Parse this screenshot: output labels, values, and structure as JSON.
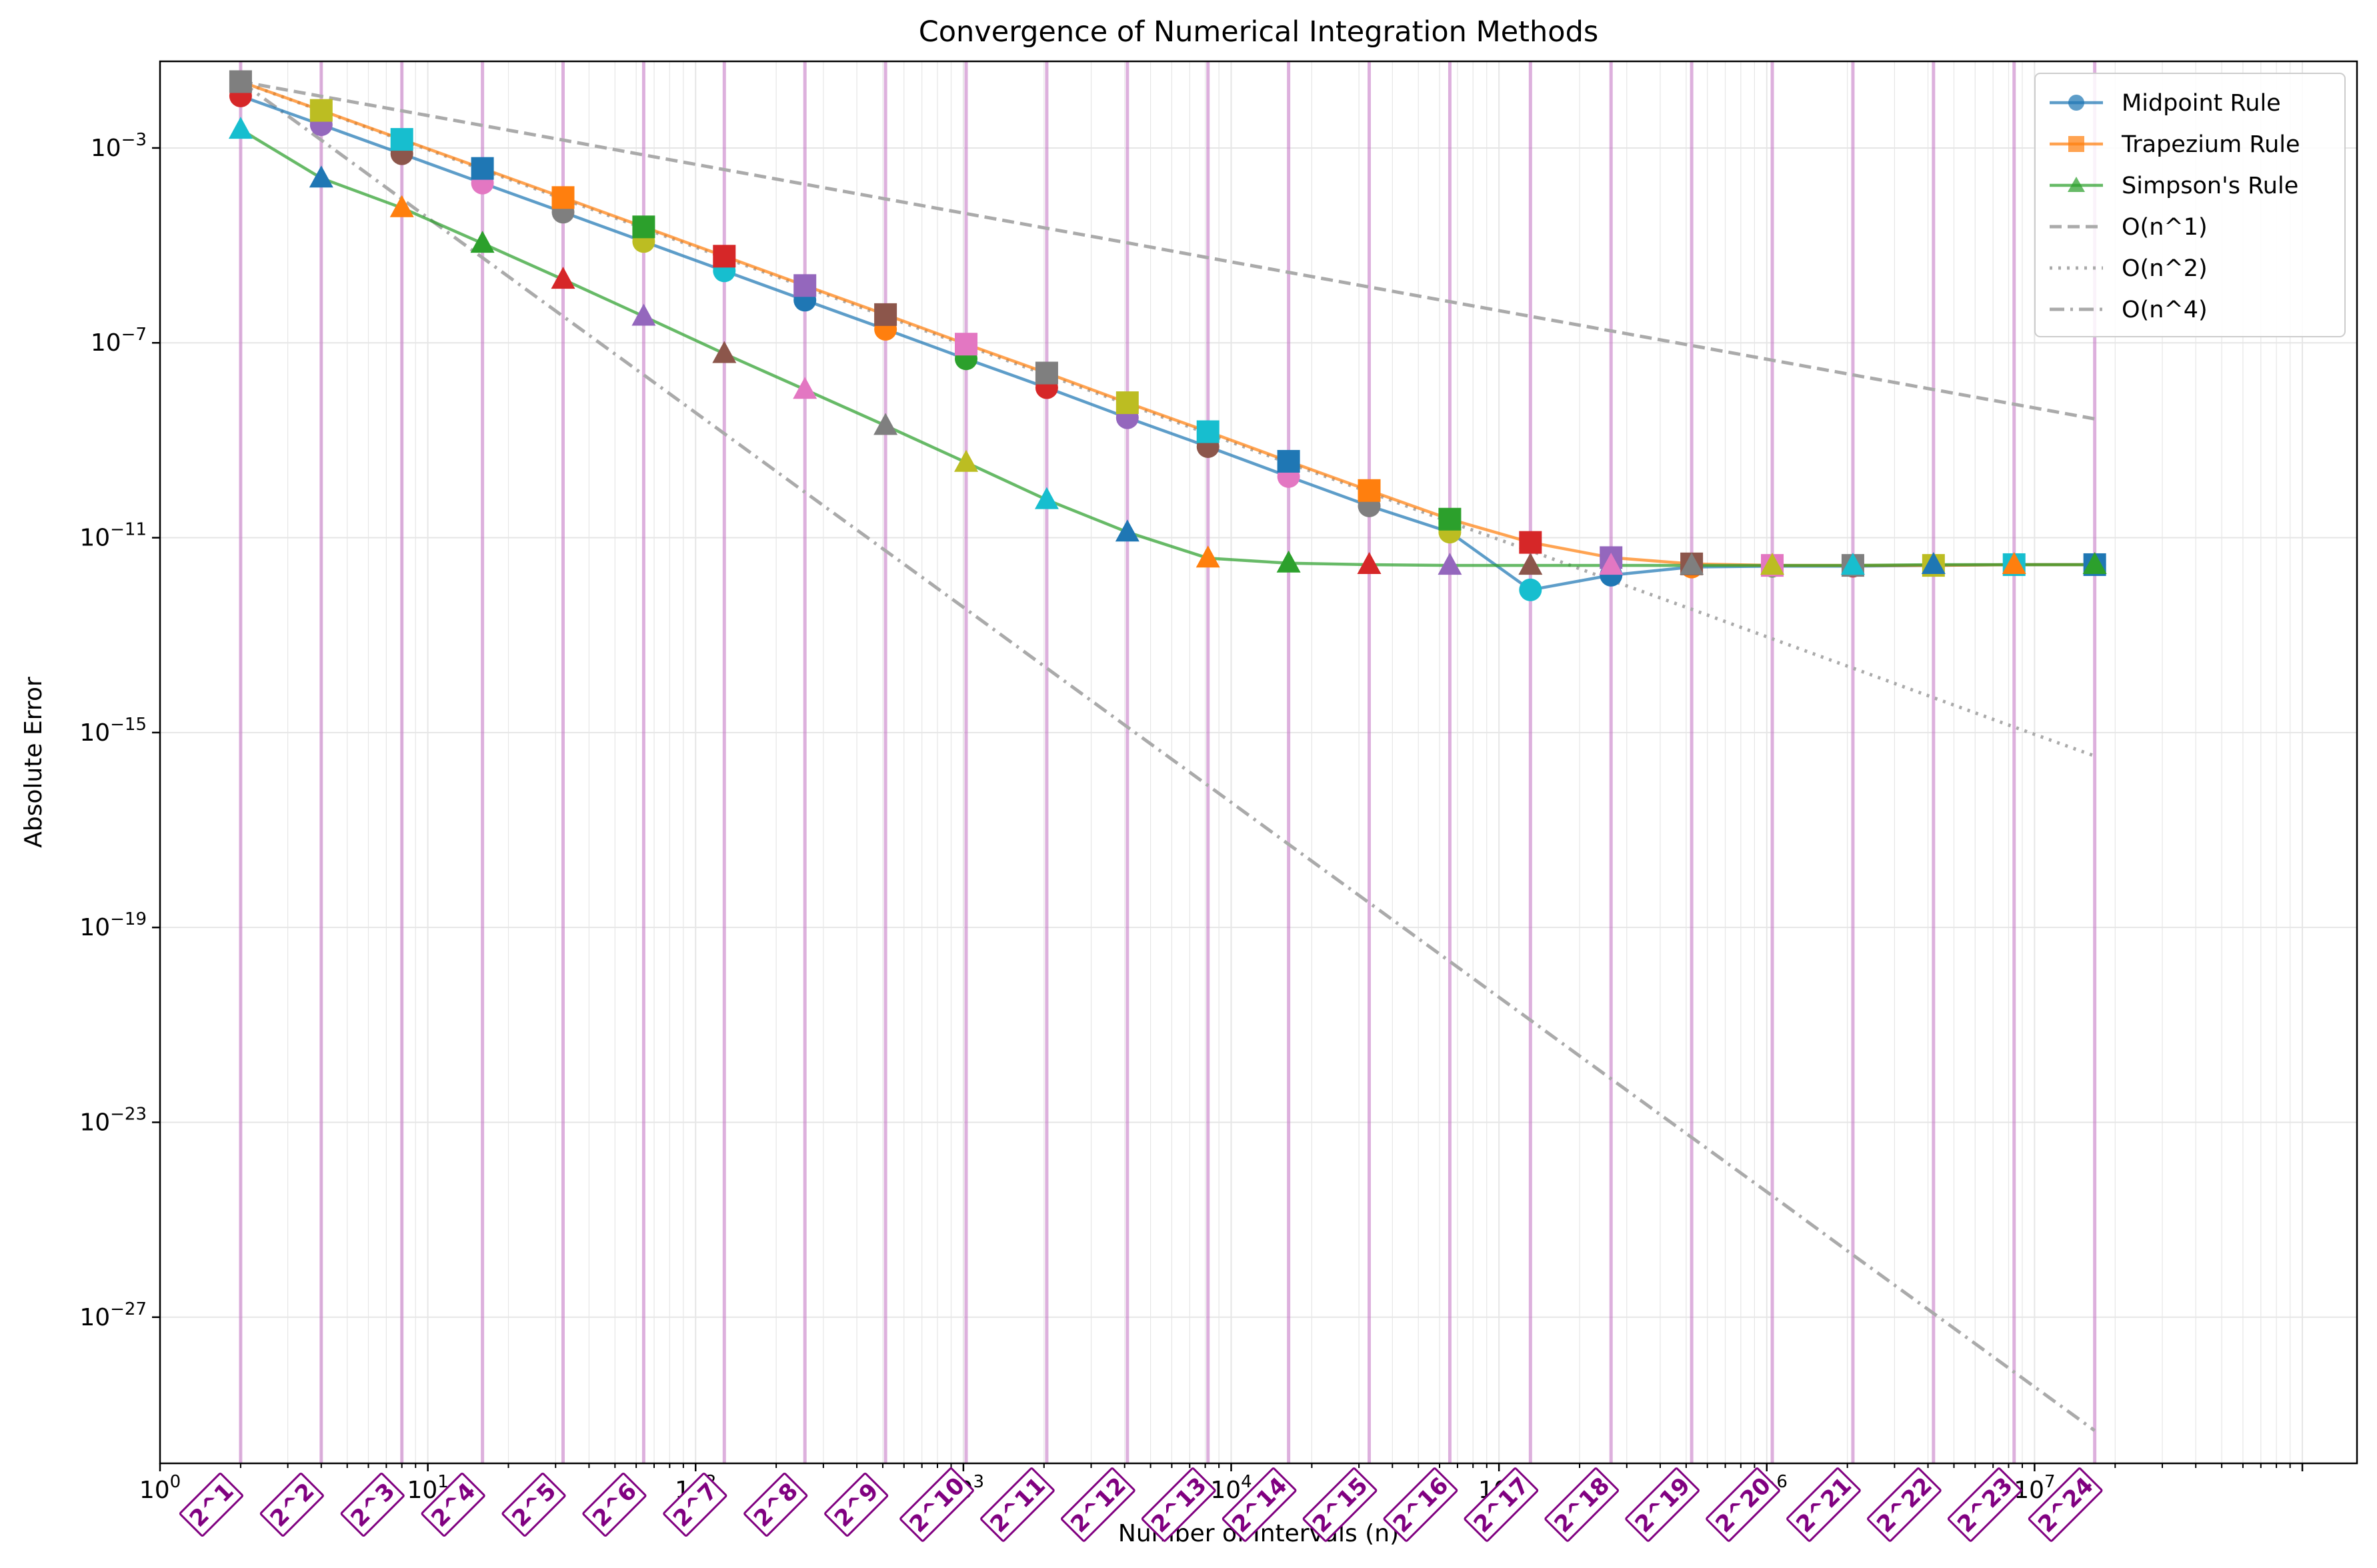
{
  "chart_data": {
    "type": "line",
    "title": "Convergence of Numerical Integration Methods",
    "xlabel": "Number of Intervals (n)",
    "ylabel": "Absolute Error",
    "xscale": "log",
    "yscale": "log",
    "xlim": [
      1,
      160000000
    ],
    "ylim": [
      1e-30,
      0.06
    ],
    "grid": true,
    "legend_position": "top-right",
    "x_tick_labels": [
      "10^0",
      "10^1",
      "10^2",
      "10^3",
      "10^4",
      "10^5",
      "10^6",
      "10^7"
    ],
    "y_tick_labels": [
      "10^-3",
      "10^-7",
      "10^-11",
      "10^-15",
      "10^-19",
      "10^-23",
      "10^-27"
    ],
    "x": [
      2,
      4,
      8,
      16,
      32,
      64,
      128,
      256,
      512,
      1024,
      2048,
      4096,
      8192,
      16384,
      32768,
      65536,
      131072,
      262144,
      524288,
      1048576,
      2097152,
      4194304,
      8388608,
      16777216
    ],
    "power_labels": [
      "2^1",
      "2^2",
      "2^3",
      "2^4",
      "2^5",
      "2^6",
      "2^7",
      "2^8",
      "2^9",
      "2^10",
      "2^11",
      "2^12",
      "2^13",
      "2^14",
      "2^15",
      "2^16",
      "2^17",
      "2^18",
      "2^19",
      "2^20",
      "2^21",
      "2^22",
      "2^23",
      "2^24"
    ],
    "series": [
      {
        "name": "Midpoint Rule",
        "color": "#1f77b4",
        "marker": "circle",
        "style": "solid",
        "values": [
          0.0117,
          0.003,
          0.00076,
          0.00019,
          4.8e-05,
          1.2e-05,
          3e-06,
          7.5e-07,
          1.9e-07,
          4.7e-08,
          1.2e-08,
          2.9e-09,
          7.4e-10,
          1.8e-10,
          4.5e-11,
          1.3e-11,
          8.5e-13,
          1.7e-12,
          2.5e-12,
          2.6e-12,
          2.6e-12,
          2.7e-12,
          2.8e-12,
          2.8e-12
        ]
      },
      {
        "name": "Trapezium Rule",
        "color": "#ff7f0e",
        "marker": "square",
        "style": "solid",
        "values": [
          0.023,
          0.0059,
          0.0015,
          0.00038,
          9.6e-05,
          2.4e-05,
          6e-06,
          1.5e-06,
          3.8e-07,
          9.4e-08,
          2.4e-08,
          5.9e-09,
          1.5e-09,
          3.7e-10,
          9.3e-11,
          2.4e-11,
          8e-12,
          3.9e-12,
          2.9e-12,
          2.7e-12,
          2.7e-12,
          2.7e-12,
          2.8e-12,
          2.8e-12
        ]
      },
      {
        "name": "Simpson's Rule",
        "color": "#2ca02c",
        "marker": "triangle",
        "style": "solid",
        "values": [
          0.0024,
          0.00024,
          5.9e-05,
          1.1e-05,
          2e-06,
          3.5e-07,
          6e-08,
          1.1e-08,
          2e-09,
          3.5e-10,
          6e-11,
          1.3e-11,
          3.8e-12,
          3e-12,
          2.8e-12,
          2.7e-12,
          2.7e-12,
          2.7e-12,
          2.7e-12,
          2.7e-12,
          2.7e-12,
          2.8e-12,
          2.8e-12,
          2.8e-12
        ]
      },
      {
        "name": "O(n^1)",
        "color": "#aaaaaa",
        "style": "dashed",
        "values": [
          0.023,
          0.0115,
          0.0058,
          0.0029,
          0.00145,
          0.00072,
          0.00036,
          0.00018,
          9e-05,
          4.5e-05,
          2.25e-05,
          1.13e-05,
          5.6e-06,
          2.8e-06,
          1.4e-06,
          7e-07,
          3.5e-07,
          1.76e-07,
          8.8e-08,
          4.4e-08,
          2.2e-08,
          1.1e-08,
          5.5e-09,
          2.75e-09
        ]
      },
      {
        "name": "O(n^2)",
        "color": "#aaaaaa",
        "style": "dotted",
        "values": [
          0.023,
          0.0058,
          0.00145,
          0.00036,
          9e-05,
          2.25e-05,
          5.6e-06,
          1.4e-06,
          3.5e-07,
          8.8e-08,
          2.2e-08,
          5.5e-09,
          1.37e-09,
          3.4e-10,
          8.6e-11,
          2.1e-11,
          5.4e-12,
          1.34e-12,
          3.4e-13,
          8.4e-14,
          2.1e-14,
          5.2e-15,
          1.3e-15,
          3.3e-16
        ]
      },
      {
        "name": "O(n^4)",
        "color": "#aaaaaa",
        "style": "dashdot",
        "values": [
          0.023,
          0.00145,
          9e-05,
          5.6e-06,
          3.5e-07,
          2.2e-08,
          1.37e-09,
          8.6e-11,
          5.4e-12,
          3.4e-13,
          2.1e-14,
          1.3e-15,
          8.2e-17,
          5.1e-18,
          3.2e-19,
          2e-20,
          1.25e-21,
          7.8e-23,
          4.9e-24,
          3.1e-25,
          1.9e-26,
          1.2e-27,
          7.5e-29,
          4.7e-30
        ]
      }
    ],
    "marker_palette": [
      "#d62728",
      "#9467bd",
      "#8c564b",
      "#e377c2",
      "#7f7f7f",
      "#bcbd22",
      "#17becf",
      "#1f77b4",
      "#ff7f0e",
      "#2ca02c"
    ],
    "vline_color": "#c77cc7"
  }
}
